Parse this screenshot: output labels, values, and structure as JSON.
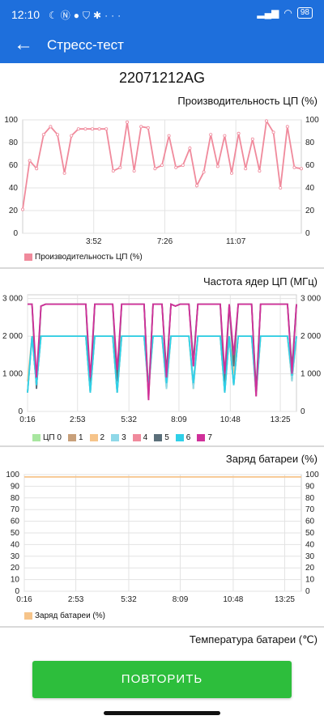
{
  "status": {
    "time": "12:10",
    "battery": "98",
    "icons": [
      "moon-icon",
      "nfc-icon",
      "app-icon",
      "shield-icon",
      "gear-icon",
      "more-icon"
    ]
  },
  "appbar": {
    "title": "Стресс-тест"
  },
  "device": "22071212AG",
  "cpu_perf": {
    "title": "Производительность ЦП (%)",
    "legend": "Производительность ЦП (%)",
    "color": "#f08a9c",
    "chart_data": {
      "type": "line",
      "x_ticks": [
        "3:52",
        "7:26",
        "11:07"
      ],
      "y_ticks": [
        "0",
        "20",
        "40",
        "60",
        "80",
        "100"
      ],
      "ylim": [
        0,
        100
      ],
      "values": [
        21,
        64,
        57,
        87,
        94,
        87,
        53,
        86,
        92,
        92,
        92,
        92,
        92,
        55,
        58,
        98,
        55,
        94,
        93,
        57,
        60,
        86,
        58,
        60,
        75,
        42,
        54,
        87,
        59,
        86,
        53,
        88,
        57,
        83,
        55,
        99,
        89,
        40,
        94,
        58,
        57
      ]
    }
  },
  "cpu_freq": {
    "title": "Частота ядер ЦП (МГц)",
    "x_ticks": [
      "0:16",
      "2:53",
      "5:32",
      "8:09",
      "10:48",
      "13:25"
    ],
    "y_ticks": [
      "0",
      "1 000",
      "2 000",
      "3 000"
    ],
    "ylim": [
      0,
      3100
    ],
    "legend": [
      {
        "label": "ЦП 0",
        "color": "#a8e6a0"
      },
      {
        "label": "1",
        "color": "#c8a07a"
      },
      {
        "label": "2",
        "color": "#f6c48a"
      },
      {
        "label": "3",
        "color": "#8fd8e8"
      },
      {
        "label": "4",
        "color": "#f08a9c"
      },
      {
        "label": "5",
        "color": "#5b6f7a"
      },
      {
        "label": "6",
        "color": "#2fd0e8"
      },
      {
        "label": "7",
        "color": "#d0309a"
      }
    ],
    "chart_data": {
      "type": "line",
      "big_cores_mhz": [
        2850,
        2850,
        600,
        2800,
        2850,
        2850,
        2850,
        2850,
        2850,
        2850,
        2850,
        2850,
        2850,
        2850,
        600,
        2850,
        2850,
        2850,
        2850,
        2850,
        800,
        2850,
        2850,
        2850,
        2850,
        2850,
        2850,
        300,
        2850,
        2850,
        2850,
        900,
        2850,
        2800,
        2850,
        2850,
        2850,
        1200,
        2850,
        2850,
        2850,
        2850,
        2850,
        2850,
        700,
        2850,
        1200,
        2850,
        2850,
        2850,
        2850,
        400,
        2850,
        2850,
        2850,
        2850,
        2850,
        2850,
        2850,
        1000,
        2850
      ],
      "small_cores_mhz": [
        500,
        2000,
        700,
        2000,
        2000,
        2000,
        2000,
        2000,
        2000,
        2000,
        2000,
        2000,
        2000,
        2000,
        500,
        2000,
        2000,
        2000,
        2000,
        2000,
        500,
        2000,
        2000,
        2000,
        2000,
        2000,
        2000,
        500,
        2000,
        2000,
        2000,
        600,
        2000,
        2000,
        2000,
        2000,
        2000,
        600,
        2000,
        2000,
        2000,
        2000,
        2000,
        2000,
        500,
        2000,
        700,
        2000,
        2000,
        2000,
        2000,
        400,
        2000,
        2000,
        2000,
        2000,
        2000,
        2000,
        2000,
        800,
        2000
      ]
    }
  },
  "battery_charge": {
    "title": "Заряд батареи (%)",
    "legend": "Заряд батареи (%)",
    "color": "#f6c48a",
    "x_ticks": [
      "0:16",
      "2:53",
      "5:32",
      "8:09",
      "10:48",
      "13:25"
    ],
    "y_ticks": [
      "0",
      "10",
      "20",
      "30",
      "40",
      "50",
      "60",
      "70",
      "80",
      "90",
      "100"
    ],
    "ylim": [
      0,
      100
    ],
    "chart_data": {
      "type": "line",
      "values": [
        98,
        98
      ]
    }
  },
  "battery_temp": {
    "title": "Температура батареи (℃)"
  },
  "retry_button": "ПОВТОРИТЬ"
}
